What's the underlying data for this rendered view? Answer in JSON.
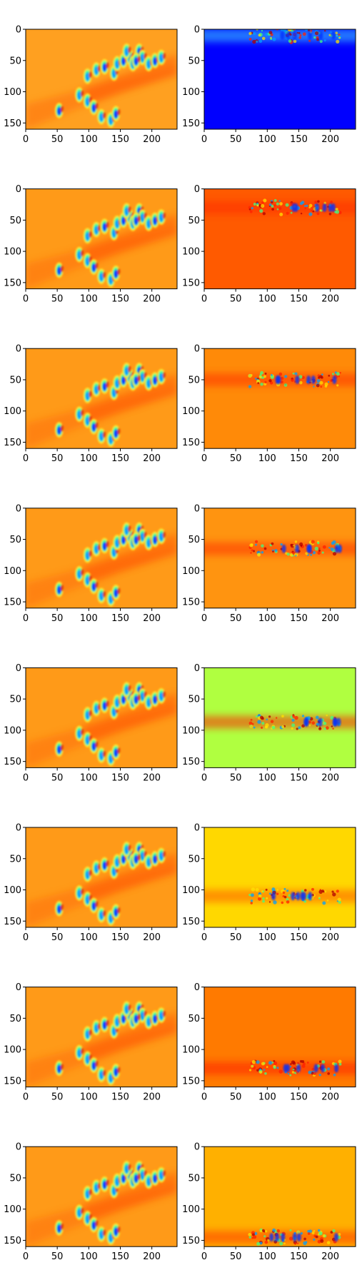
{
  "figure": {
    "xlim": [
      0,
      240
    ],
    "ylim": [
      0,
      160
    ],
    "x_ticks": [
      "0",
      "50",
      "100",
      "150",
      "200"
    ],
    "y_ticks": [
      "0",
      "50",
      "100",
      "150"
    ],
    "colormap": "jet",
    "rows": [
      {
        "left": {
          "background": "#ffa020",
          "blobs": "diagonal"
        },
        "right": {
          "background": "#0000ff",
          "band_center_y": 10,
          "band_color": "#40d8ff"
        }
      },
      {
        "left": {
          "background": "#ff9a18",
          "blobs": "diagonal"
        },
        "right": {
          "background": "#ff5a00",
          "band_center_y": 30,
          "band_color": "#ff2a00"
        }
      },
      {
        "left": {
          "background": "#ff9a18",
          "blobs": "diagonal"
        },
        "right": {
          "background": "#ff8a08",
          "band_center_y": 50,
          "band_color": "#ff3000"
        }
      },
      {
        "left": {
          "background": "#ff9a18",
          "blobs": "diagonal"
        },
        "right": {
          "background": "#ff9410",
          "band_center_y": 65,
          "band_color": "#ff3000"
        }
      },
      {
        "left": {
          "background": "#ff9a18",
          "blobs": "diagonal"
        },
        "right": {
          "background": "#b0ff40",
          "band_center_y": 87,
          "band_color": "#ff2000"
        }
      },
      {
        "left": {
          "background": "#ff9a18",
          "blobs": "diagonal"
        },
        "right": {
          "background": "#ffd800",
          "band_center_y": 110,
          "band_color": "#ff5a00"
        }
      },
      {
        "left": {
          "background": "#ff9a18",
          "blobs": "diagonal"
        },
        "right": {
          "background": "#ff7a00",
          "band_center_y": 130,
          "band_color": "#ff1a00"
        }
      },
      {
        "left": {
          "background": "#ff9a18",
          "blobs": "diagonal"
        },
        "right": {
          "background": "#ffb000",
          "band_center_y": 145,
          "band_color": "#ff3a00"
        }
      }
    ]
  }
}
